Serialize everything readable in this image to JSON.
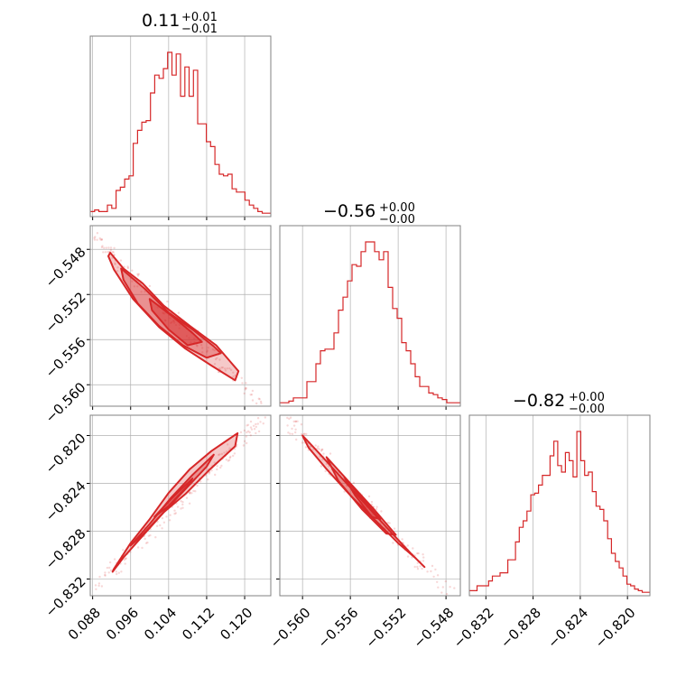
{
  "colors": {
    "accent": "#d62728",
    "grid": "#b0b0b0",
    "frame": "#808080"
  },
  "chart_data": [
    {
      "type": "histogram",
      "panel": "diag-0",
      "title": {
        "main": "0.11",
        "sup": "+0.01",
        "sub": "−0.01"
      },
      "xlim": [
        0.0875,
        0.1255
      ],
      "xticks": [
        0.088,
        0.096,
        0.104,
        0.112,
        0.12
      ],
      "bins_x": [
        0.0875,
        0.0884,
        0.0893,
        0.0902,
        0.0911,
        0.092,
        0.0929,
        0.0938,
        0.0947,
        0.0956,
        0.0965,
        0.0974,
        0.0983,
        0.0992,
        0.1001,
        0.101,
        0.1019,
        0.1028,
        0.1037,
        0.1046,
        0.1055,
        0.1064,
        0.1073,
        0.1082,
        0.1091,
        0.11,
        0.1109,
        0.1118,
        0.1127,
        0.1136,
        0.1145,
        0.1154,
        0.1163,
        0.1172,
        0.1181,
        0.119,
        0.1199,
        0.1208,
        0.1217,
        0.1226,
        0.1235,
        0.1244,
        0.1255
      ],
      "values": [
        2,
        3,
        2,
        2,
        6,
        4,
        15,
        17,
        22,
        24,
        44,
        52,
        57,
        58,
        75,
        86,
        84,
        90,
        100,
        86,
        99,
        73,
        91,
        73,
        89,
        56,
        56,
        45,
        42,
        31,
        25,
        24,
        25,
        16,
        14,
        14,
        9,
        6,
        4,
        2,
        1,
        1
      ],
      "ymax": 100
    },
    {
      "type": "histogram",
      "panel": "diag-1",
      "title": {
        "main": "−0.56",
        "sup": "+0.00",
        "sub": "−0.00"
      },
      "xlim": [
        -0.5619,
        -0.5468
      ],
      "xticks": [
        -0.56,
        -0.556,
        -0.552,
        -0.548
      ],
      "tick_labels": [
        "−0.560",
        "−0.556",
        "−0.552",
        "−0.548"
      ],
      "values": [
        1,
        1,
        2,
        4,
        4,
        4,
        14,
        14,
        25,
        33,
        34,
        34,
        44,
        58,
        66,
        76,
        86,
        85,
        94,
        100,
        100,
        94,
        89,
        94,
        72,
        59,
        53,
        38,
        33,
        25,
        17,
        11,
        11,
        7,
        6,
        4,
        3,
        1,
        1,
        1
      ],
      "ymax": 100
    },
    {
      "type": "histogram",
      "panel": "diag-2",
      "title": {
        "main": "−0.82",
        "sup": "+0.00",
        "sub": "−0.00"
      },
      "xlim": [
        -0.8334,
        -0.8181
      ],
      "xticks": [
        -0.832,
        -0.828,
        -0.824,
        -0.82
      ],
      "tick_labels": [
        "−0.832",
        "−0.828",
        "−0.824",
        "−0.820"
      ],
      "values": [
        2,
        2,
        5,
        5,
        5,
        8,
        11,
        11,
        13,
        13,
        21,
        21,
        32,
        41,
        45,
        51,
        61,
        62,
        67,
        73,
        73,
        85,
        94,
        79,
        75,
        87,
        82,
        72,
        100,
        82,
        73,
        75,
        63,
        54,
        52,
        45,
        34,
        25,
        20,
        16,
        11,
        6,
        5,
        3,
        2,
        1,
        1
      ],
      "ymax": 100
    },
    {
      "type": "scatter_contour",
      "panel": "pair-1-0",
      "xlim": [
        0.0875,
        0.1255
      ],
      "ylim": [
        -0.5619,
        -0.5459
      ],
      "xticks": [
        0.088,
        0.096,
        0.104,
        0.112,
        0.12
      ],
      "yticks": [
        -0.548,
        -0.552,
        -0.556,
        -0.56
      ],
      "ytick_labels": [
        "−0.548",
        "−0.552",
        "−0.556",
        "−0.560"
      ],
      "contours": [
        [
          [
            0.0917,
            -0.5483
          ],
          [
            0.0945,
            -0.5497
          ],
          [
            0.0985,
            -0.551
          ],
          [
            0.103,
            -0.553
          ],
          [
            0.1085,
            -0.5548
          ],
          [
            0.114,
            -0.5565
          ],
          [
            0.1187,
            -0.5588
          ],
          [
            0.118,
            -0.5596
          ],
          [
            0.113,
            -0.5583
          ],
          [
            0.1075,
            -0.5568
          ],
          [
            0.102,
            -0.5549
          ],
          [
            0.0965,
            -0.5524
          ],
          [
            0.0925,
            -0.5498
          ],
          [
            0.0913,
            -0.5486
          ]
        ],
        [
          [
            0.094,
            -0.5497
          ],
          [
            0.099,
            -0.5515
          ],
          [
            0.104,
            -0.5536
          ],
          [
            0.109,
            -0.5551
          ],
          [
            0.1135,
            -0.5566
          ],
          [
            0.115,
            -0.5572
          ],
          [
            0.112,
            -0.5576
          ],
          [
            0.107,
            -0.5565
          ],
          [
            0.102,
            -0.5548
          ],
          [
            0.0975,
            -0.5528
          ],
          [
            0.0945,
            -0.5507
          ]
        ],
        [
          [
            0.1,
            -0.5524
          ],
          [
            0.105,
            -0.554
          ],
          [
            0.109,
            -0.5554
          ],
          [
            0.111,
            -0.5562
          ],
          [
            0.108,
            -0.5565
          ],
          [
            0.104,
            -0.5551
          ],
          [
            0.1005,
            -0.5534
          ]
        ]
      ]
    },
    {
      "type": "scatter_contour",
      "panel": "pair-2-0",
      "xlim": [
        0.0875,
        0.1255
      ],
      "ylim": [
        -0.8334,
        -0.8183
      ],
      "xticks": [
        0.088,
        0.096,
        0.104,
        0.112,
        0.12
      ],
      "yticks": [
        -0.82,
        -0.824,
        -0.828,
        -0.832
      ],
      "ytick_labels": [
        "−0.820",
        "−0.824",
        "−0.828",
        "−0.832"
      ],
      "contours": [
        [
          [
            0.0924,
            -0.8312
          ],
          [
            0.096,
            -0.829
          ],
          [
            0.1,
            -0.827
          ],
          [
            0.104,
            -0.8248
          ],
          [
            0.1085,
            -0.8228
          ],
          [
            0.113,
            -0.8213
          ],
          [
            0.1185,
            -0.8198
          ],
          [
            0.118,
            -0.8209
          ],
          [
            0.1125,
            -0.8229
          ],
          [
            0.1075,
            -0.8249
          ],
          [
            0.103,
            -0.8264
          ],
          [
            0.0985,
            -0.8284
          ],
          [
            0.0945,
            -0.8302
          ],
          [
            0.0922,
            -0.8314
          ]
        ],
        [
          [
            0.096,
            -0.8292
          ],
          [
            0.1,
            -0.8274
          ],
          [
            0.1045,
            -0.8252
          ],
          [
            0.109,
            -0.8233
          ],
          [
            0.1135,
            -0.8216
          ],
          [
            0.112,
            -0.8226
          ],
          [
            0.1075,
            -0.8245
          ],
          [
            0.103,
            -0.8264
          ],
          [
            0.0985,
            -0.8283
          ]
        ],
        [
          [
            0.101,
            -0.8268
          ],
          [
            0.105,
            -0.8251
          ],
          [
            0.109,
            -0.8236
          ],
          [
            0.108,
            -0.8242
          ],
          [
            0.104,
            -0.8259
          ]
        ]
      ]
    },
    {
      "type": "scatter_contour",
      "panel": "pair-2-1",
      "xlim": [
        -0.5619,
        -0.5468
      ],
      "ylim": [
        -0.8334,
        -0.8183
      ],
      "xticks": [
        -0.56,
        -0.556,
        -0.552,
        -0.548
      ],
      "tick_labels": [
        "−0.560",
        "−0.556",
        "−0.552",
        "−0.548"
      ],
      "contours": [
        [
          [
            -0.56,
            -0.82
          ],
          [
            -0.5585,
            -0.8216
          ],
          [
            -0.5565,
            -0.8238
          ],
          [
            -0.5545,
            -0.826
          ],
          [
            -0.5525,
            -0.8282
          ],
          [
            -0.5508,
            -0.83
          ],
          [
            -0.5498,
            -0.831
          ],
          [
            -0.5505,
            -0.8303
          ],
          [
            -0.552,
            -0.829
          ],
          [
            -0.554,
            -0.827
          ],
          [
            -0.556,
            -0.825
          ],
          [
            -0.558,
            -0.8228
          ],
          [
            -0.5595,
            -0.821
          ]
        ],
        [
          [
            -0.558,
            -0.8218
          ],
          [
            -0.556,
            -0.824
          ],
          [
            -0.554,
            -0.8262
          ],
          [
            -0.5522,
            -0.8283
          ],
          [
            -0.553,
            -0.8282
          ],
          [
            -0.555,
            -0.8262
          ],
          [
            -0.557,
            -0.8238
          ]
        ],
        [
          [
            -0.5565,
            -0.8235
          ],
          [
            -0.5548,
            -0.8255
          ],
          [
            -0.5535,
            -0.827
          ],
          [
            -0.5542,
            -0.8268
          ],
          [
            -0.5556,
            -0.825
          ]
        ]
      ]
    }
  ]
}
